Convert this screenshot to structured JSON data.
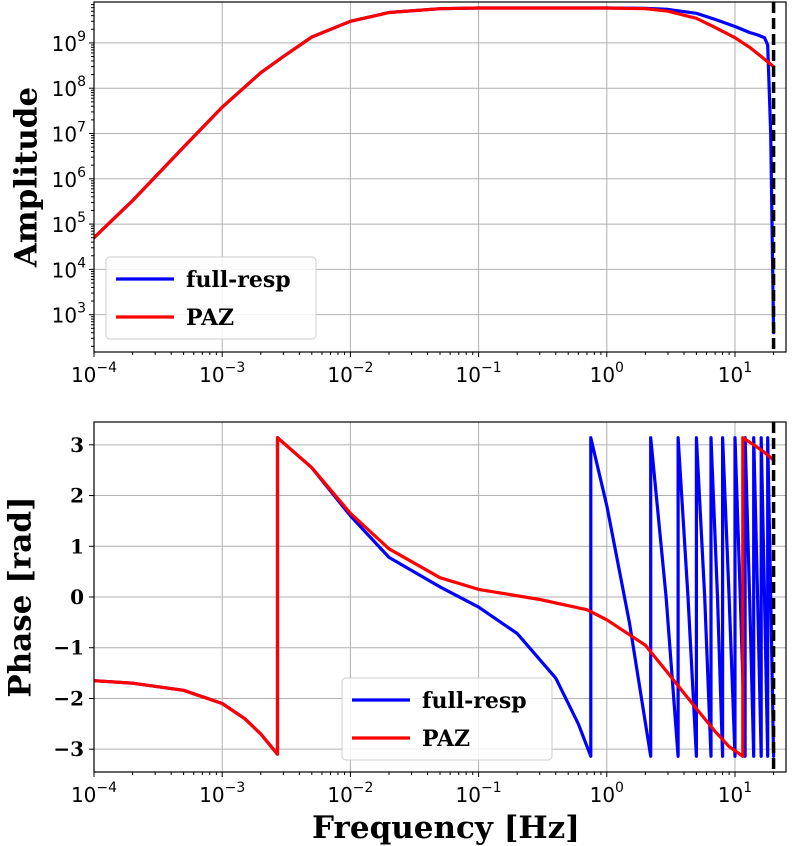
{
  "colors": {
    "full_resp": "#0000ff",
    "paz": "#ff0000",
    "marker": "#000000",
    "grid": "#b0b0b0"
  },
  "chart_data": [
    {
      "type": "line",
      "xscale": "log",
      "yscale": "log",
      "xlim": [
        0.0001,
        25
      ],
      "ylim": [
        150,
        8000000000
      ],
      "xlabel": "",
      "ylabel": "Amplitude",
      "xtick_labels": [
        {
          "base": "10",
          "exp": "−4",
          "value": 0.0001
        },
        {
          "base": "10",
          "exp": "−3",
          "value": 0.001
        },
        {
          "base": "10",
          "exp": "−2",
          "value": 0.01
        },
        {
          "base": "10",
          "exp": "−1",
          "value": 0.1
        },
        {
          "base": "10",
          "exp": "0",
          "value": 1
        },
        {
          "base": "10",
          "exp": "1",
          "value": 10
        }
      ],
      "ytick_labels": [
        {
          "base": "10",
          "exp": "3",
          "value": 1000
        },
        {
          "base": "10",
          "exp": "4",
          "value": 10000
        },
        {
          "base": "10",
          "exp": "5",
          "value": 100000
        },
        {
          "base": "10",
          "exp": "6",
          "value": 1000000
        },
        {
          "base": "10",
          "exp": "7",
          "value": 10000000
        },
        {
          "base": "10",
          "exp": "8",
          "value": 100000000
        },
        {
          "base": "10",
          "exp": "9",
          "value": 1000000000
        }
      ],
      "grid": true,
      "legend": {
        "position": "lower-left",
        "entries": [
          "full-resp",
          "PAZ"
        ]
      },
      "vline": {
        "x": 20,
        "style": "dashed"
      },
      "series": [
        {
          "name": "full-resp",
          "x": [
            0.0001,
            0.0002,
            0.0005,
            0.001,
            0.002,
            0.003,
            0.005,
            0.01,
            0.02,
            0.05,
            0.1,
            0.3,
            1,
            2,
            3,
            5,
            7,
            10,
            13,
            15,
            17,
            18,
            19,
            20
          ],
          "y": [
            50000,
            330000,
            5000000,
            38000000,
            220000000,
            500000000,
            1350000000,
            3000000000,
            4700000000,
            5700000000,
            5900000000,
            5900000000,
            5900000000,
            5800000000,
            5500000000,
            4500000000,
            3300000000,
            2300000000,
            1700000000,
            1500000000,
            1300000000,
            900000000,
            10000000,
            400
          ]
        },
        {
          "name": "PAZ",
          "x": [
            0.0001,
            0.0002,
            0.0005,
            0.001,
            0.002,
            0.003,
            0.005,
            0.01,
            0.02,
            0.05,
            0.1,
            0.3,
            1,
            2,
            3,
            5,
            7,
            10,
            13,
            16,
            20
          ],
          "y": [
            50000,
            330000,
            5000000,
            38000000,
            220000000,
            500000000,
            1350000000,
            3000000000,
            4700000000,
            5700000000,
            5900000000,
            5900000000,
            5900000000,
            5700000000,
            5000000000,
            3500000000,
            2200000000,
            1300000000,
            800000000,
            500000000,
            300000000
          ]
        }
      ]
    },
    {
      "type": "line",
      "xscale": "log",
      "yscale": "linear",
      "xlim": [
        0.0001,
        25
      ],
      "ylim": [
        -3.45,
        3.45
      ],
      "xlabel": "Frequency [Hz]",
      "ylabel": "Phase [rad]",
      "xtick_labels": [
        {
          "base": "10",
          "exp": "−4",
          "value": 0.0001
        },
        {
          "base": "10",
          "exp": "−3",
          "value": 0.001
        },
        {
          "base": "10",
          "exp": "−2",
          "value": 0.01
        },
        {
          "base": "10",
          "exp": "−1",
          "value": 0.1
        },
        {
          "base": "10",
          "exp": "0",
          "value": 1
        },
        {
          "base": "10",
          "exp": "1",
          "value": 10
        }
      ],
      "ytick_labels": [
        {
          "text": "3",
          "value": 3
        },
        {
          "text": "2",
          "value": 2
        },
        {
          "text": "1",
          "value": 1
        },
        {
          "text": "0",
          "value": 0
        },
        {
          "text": "−1",
          "value": -1
        },
        {
          "text": "−2",
          "value": -2
        },
        {
          "text": "−3",
          "value": -3
        }
      ],
      "grid": true,
      "legend": {
        "position": "lower-center",
        "entries": [
          "full-resp",
          "PAZ"
        ]
      },
      "vline": {
        "x": 20,
        "style": "dashed"
      },
      "series": [
        {
          "name": "full-resp",
          "x": [
            0.0001,
            0.0002,
            0.0005,
            0.001,
            0.0015,
            0.002,
            0.0027,
            0.0027,
            0.005,
            0.01,
            0.02,
            0.05,
            0.1,
            0.2,
            0.4,
            0.6,
            0.75,
            0.75,
            1,
            1.5,
            2.2,
            2.2,
            2.9,
            3.6,
            3.6,
            4.3,
            5,
            5,
            5.8,
            6.5,
            6.5,
            7.3,
            8,
            8,
            9,
            10,
            10,
            11,
            12,
            12,
            13,
            14,
            14,
            15,
            16,
            16,
            17,
            18,
            18,
            19,
            20
          ],
          "y": [
            -1.65,
            -1.7,
            -1.84,
            -2.1,
            -2.4,
            -2.7,
            -3.1,
            3.14,
            2.55,
            1.6,
            0.78,
            0.2,
            -0.2,
            -0.72,
            -1.6,
            -2.5,
            -3.14,
            3.14,
            1.8,
            -0.5,
            -3.14,
            3.14,
            0,
            -3.14,
            3.14,
            0,
            -3.14,
            3.14,
            0,
            -3.14,
            3.14,
            0,
            -3.14,
            3.14,
            0,
            -3.14,
            3.14,
            0,
            -3.14,
            3.14,
            0,
            -3.14,
            3.14,
            0,
            -3.14,
            3.14,
            0,
            -3.14,
            3.14,
            0,
            -3.14
          ]
        },
        {
          "name": "PAZ",
          "x": [
            0.0001,
            0.0002,
            0.0005,
            0.001,
            0.0015,
            0.002,
            0.0027,
            0.0027,
            0.005,
            0.01,
            0.02,
            0.05,
            0.1,
            0.3,
            0.7,
            1,
            2,
            3,
            5,
            7,
            9,
            11.5,
            11.5,
            14,
            17,
            20
          ],
          "y": [
            -1.65,
            -1.7,
            -1.84,
            -2.1,
            -2.4,
            -2.7,
            -3.1,
            3.14,
            2.55,
            1.65,
            0.95,
            0.38,
            0.15,
            -0.05,
            -0.25,
            -0.45,
            -0.95,
            -1.5,
            -2.2,
            -2.65,
            -2.95,
            -3.14,
            3.14,
            3.0,
            2.85,
            2.7
          ]
        }
      ]
    }
  ]
}
